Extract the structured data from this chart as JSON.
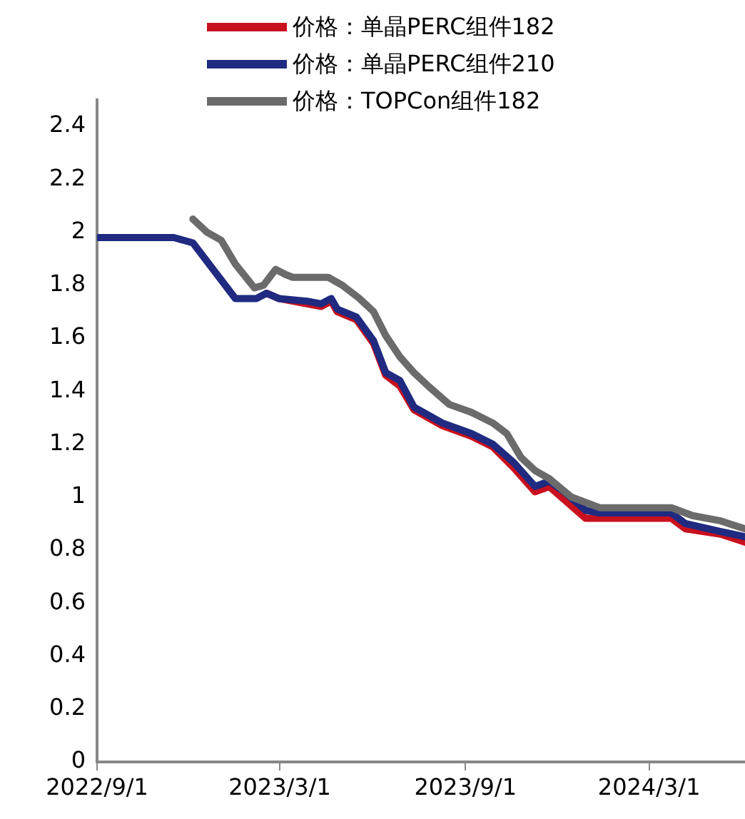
{
  "chart_data": {
    "type": "line",
    "legend": "top",
    "marker": "none",
    "line_style": "solid",
    "grid": false,
    "xlim": [
      "2022-09-01",
      "2024-06-04"
    ],
    "xticks": [
      {
        "value": "2022-09-01",
        "label": "2022/9/1"
      },
      {
        "value": "2023-03-01",
        "label": "2023/3/1"
      },
      {
        "value": "2023-09-01",
        "label": "2023/9/1"
      },
      {
        "value": "2024-03-01",
        "label": "2024/3/1"
      }
    ],
    "ylim": [
      0,
      2.5
    ],
    "yticks": [
      0,
      0.2,
      0.4,
      0.6,
      0.8,
      1,
      1.2,
      1.4,
      1.6,
      1.8,
      2,
      2.2,
      2.4
    ],
    "series": [
      {
        "name": "价格：单晶PERC组件182",
        "color": "#c8101e",
        "x": [
          "2023-02-16",
          "2023-02-28",
          "2023-03-28",
          "2023-04-11",
          "2023-04-21",
          "2023-04-27",
          "2023-05-16",
          "2023-06-02",
          "2023-06-14",
          "2023-06-28",
          "2023-07-12",
          "2023-08-09",
          "2023-09-07",
          "2023-09-28",
          "2023-10-19",
          "2023-11-09",
          "2023-11-23",
          "2023-12-08",
          "2023-12-29",
          "2024-01-09",
          "2024-03-23",
          "2024-04-06",
          "2024-05-11",
          "2024-06-04"
        ],
        "values": [
          1.77,
          1.75,
          1.73,
          1.72,
          1.74,
          1.7,
          1.67,
          1.58,
          1.46,
          1.42,
          1.33,
          1.27,
          1.23,
          1.19,
          1.11,
          1.02,
          1.04,
          0.99,
          0.92,
          0.92,
          0.92,
          0.88,
          0.86,
          0.83
        ]
      },
      {
        "name": "价格：单晶PERC组件210",
        "color": "#1f2a80",
        "x": [
          "2022-09-01",
          "2022-11-16",
          "2022-12-05",
          "2023-01-16",
          "2023-02-06",
          "2023-02-16",
          "2023-02-28",
          "2023-03-28",
          "2023-04-11",
          "2023-04-21",
          "2023-04-27",
          "2023-05-16",
          "2023-06-02",
          "2023-06-14",
          "2023-06-28",
          "2023-07-12",
          "2023-08-09",
          "2023-09-07",
          "2023-09-28",
          "2023-10-19",
          "2023-11-09",
          "2023-11-23",
          "2023-12-08",
          "2023-12-29",
          "2024-01-12",
          "2024-03-23",
          "2024-04-06",
          "2024-05-11",
          "2024-06-04"
        ],
        "values": [
          1.98,
          1.98,
          1.96,
          1.75,
          1.75,
          1.77,
          1.75,
          1.74,
          1.73,
          1.75,
          1.71,
          1.68,
          1.59,
          1.47,
          1.44,
          1.34,
          1.28,
          1.24,
          1.2,
          1.13,
          1.04,
          1.06,
          1.02,
          0.95,
          0.94,
          0.94,
          0.9,
          0.87,
          0.85
        ]
      },
      {
        "name": "价格：TOPCon组件182",
        "color": "#6b6b6b",
        "x": [
          "2022-12-05",
          "2022-12-19",
          "2023-01-02",
          "2023-01-16",
          "2023-02-04",
          "2023-02-13",
          "2023-02-25",
          "2023-03-07",
          "2023-03-14",
          "2023-04-18",
          "2023-05-02",
          "2023-05-19",
          "2023-06-02",
          "2023-06-14",
          "2023-06-28",
          "2023-07-12",
          "2023-07-26",
          "2023-08-16",
          "2023-09-07",
          "2023-09-28",
          "2023-10-12",
          "2023-10-26",
          "2023-11-09",
          "2023-11-23",
          "2023-12-15",
          "2024-01-12",
          "2024-03-23",
          "2024-04-13",
          "2024-05-11",
          "2024-06-04"
        ],
        "values": [
          2.05,
          2,
          1.97,
          1.88,
          1.79,
          1.8,
          1.86,
          1.84,
          1.83,
          1.83,
          1.8,
          1.75,
          1.7,
          1.61,
          1.53,
          1.47,
          1.42,
          1.35,
          1.32,
          1.28,
          1.24,
          1.15,
          1.1,
          1.07,
          1,
          0.96,
          0.96,
          0.93,
          0.91,
          0.88
        ]
      }
    ]
  }
}
